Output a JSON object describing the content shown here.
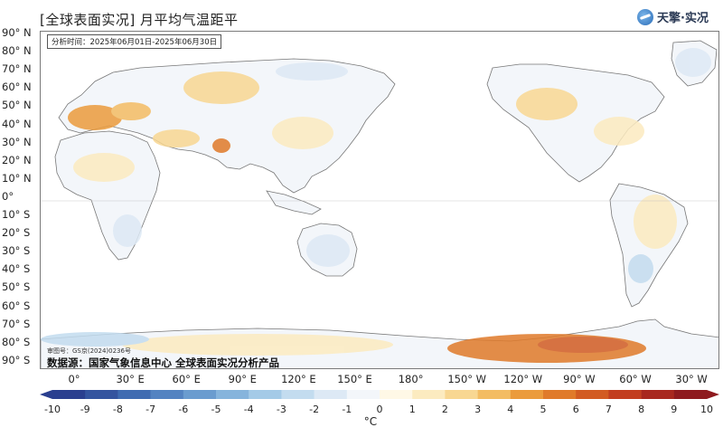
{
  "title": "[全球表面实况] 月平均气温距平",
  "brand": {
    "text": "天擎·实况",
    "icon": "weather-globe-icon"
  },
  "period_label": "分析时间：2025年06月01日-2025年06月30日",
  "review_number": "审图号：GS京(2024)0236号",
  "source": "数据源：国家气象信息中心 全球表面实况分析产品",
  "lat_labels": [
    "90° N",
    "80° N",
    "70° N",
    "60° N",
    "50° N",
    "40° N",
    "30° N",
    "20° N",
    "10° N",
    "0°",
    "10° S",
    "20° S",
    "30° S",
    "40° S",
    "50° S",
    "60° S",
    "70° S",
    "80° S",
    "90° S"
  ],
  "lon_labels": [
    "0°",
    "30° E",
    "60° E",
    "90° E",
    "120° E",
    "150° E",
    "180°",
    "150° W",
    "120° W",
    "90° W",
    "60° W",
    "30° W"
  ],
  "colorbar": {
    "ticks": [
      "-10",
      "-9",
      "-8",
      "-7",
      "-6",
      "-5",
      "-4",
      "-3",
      "-2",
      "-1",
      "0",
      "1",
      "2",
      "3",
      "4",
      "5",
      "6",
      "7",
      "8",
      "9",
      "10"
    ],
    "unit": "°C",
    "colors": [
      "#2a3f8f",
      "#34549f",
      "#3f6bb1",
      "#5383c1",
      "#6a9ccf",
      "#86b4dc",
      "#a4cae7",
      "#c3dcef",
      "#dde9f5",
      "#f3f6fa",
      "#fff8e6",
      "#fcebc0",
      "#f8d792",
      "#f3bc63",
      "#eb9b3c",
      "#e07a2a",
      "#d25b22",
      "#c23e1f",
      "#a8281f",
      "#8e1a1e"
    ]
  },
  "anomaly_regions": [
    {
      "name": "europe-west",
      "color": "#eb9b3c"
    },
    {
      "name": "europe-central",
      "color": "#f3bc63"
    },
    {
      "name": "siberia-west",
      "color": "#f8d792"
    },
    {
      "name": "siberia-east",
      "color": "#dde9f5"
    },
    {
      "name": "middle-east",
      "color": "#f8d792"
    },
    {
      "name": "india-north",
      "color": "#e07a2a"
    },
    {
      "name": "east-asia",
      "color": "#fcebc0"
    },
    {
      "name": "north-america-west",
      "color": "#f8d792"
    },
    {
      "name": "north-america-east",
      "color": "#fcebc0"
    },
    {
      "name": "greenland",
      "color": "#dde9f5"
    },
    {
      "name": "south-america",
      "color": "#fcebc0"
    },
    {
      "name": "argentina",
      "color": "#c3dcef"
    },
    {
      "name": "africa-north",
      "color": "#fcebc0"
    },
    {
      "name": "africa-south",
      "color": "#dde9f5"
    },
    {
      "name": "australia",
      "color": "#dde9f5"
    },
    {
      "name": "antarctica-west",
      "color": "#e07a2a"
    },
    {
      "name": "antarctica-east",
      "color": "#fcebc0"
    }
  ]
}
